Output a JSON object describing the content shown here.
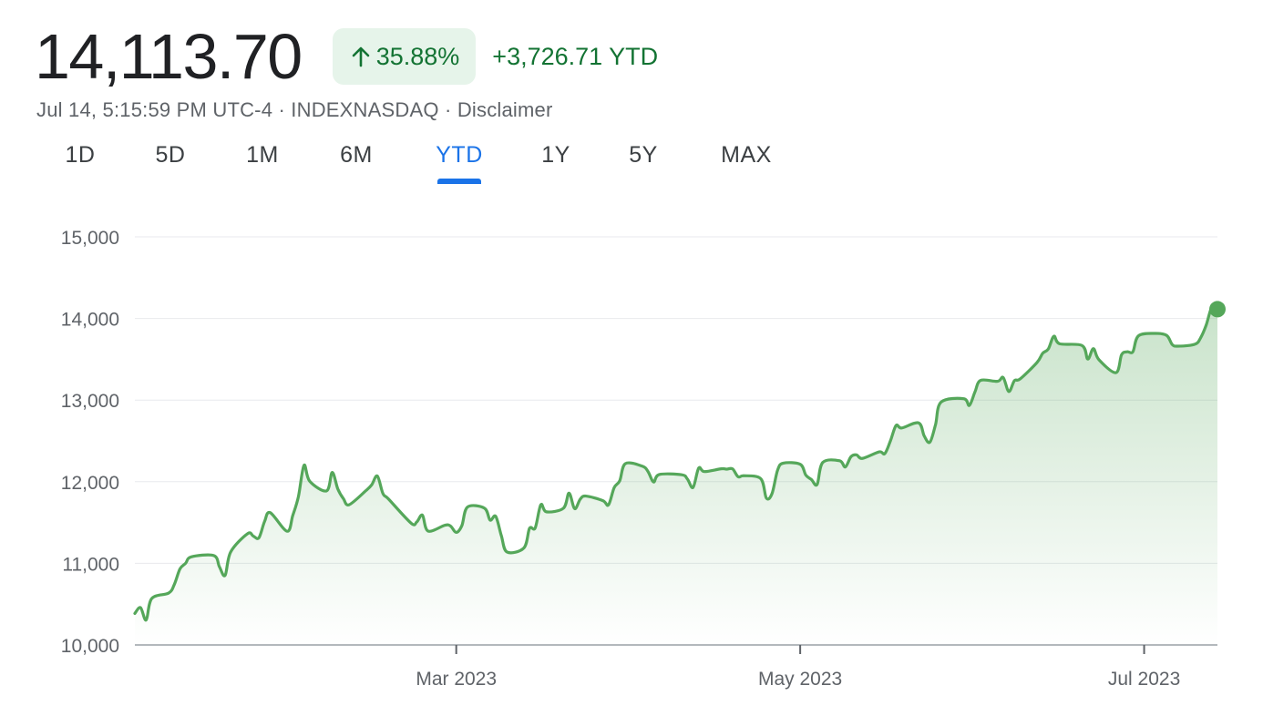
{
  "quote": {
    "price": "14,113.70",
    "change_percent": "35.88%",
    "change_abs": "+3,726.71 YTD",
    "timestamp": "Jul 14, 5:15:59 PM UTC-4",
    "exchange": "INDEXNASDAQ",
    "separator": " · ",
    "disclaimer": "Disclaimer",
    "arrow_icon": "arrow-up-icon",
    "accent_color": "#137333",
    "badge_color": "#e6f4ea"
  },
  "tabs": [
    {
      "label": "1D",
      "active": false
    },
    {
      "label": "5D",
      "active": false
    },
    {
      "label": "1M",
      "active": false
    },
    {
      "label": "6M",
      "active": false
    },
    {
      "label": "YTD",
      "active": true
    },
    {
      "label": "1Y",
      "active": false
    },
    {
      "label": "5Y",
      "active": false
    },
    {
      "label": "MAX",
      "active": false
    }
  ],
  "chart_data": {
    "type": "area",
    "title": "",
    "xlabel": "",
    "ylabel": "",
    "ylim": [
      10000,
      15000
    ],
    "yticks": [
      10000,
      11000,
      12000,
      13000,
      14000,
      15000
    ],
    "ytick_labels": [
      "10,000",
      "11,000",
      "12,000",
      "13,000",
      "14,000",
      "15,000"
    ],
    "xlim": [
      "2023-01-03",
      "2023-07-14"
    ],
    "xticks": [
      {
        "date": "2023-03-01",
        "label": "Mar 2023"
      },
      {
        "date": "2023-05-01",
        "label": "May 2023"
      },
      {
        "date": "2023-07-01",
        "label": "Jul 2023"
      }
    ],
    "grid": true,
    "line_color": "#55a75a",
    "series": [
      {
        "x": [
          "2023-01-03",
          "2023-01-04",
          "2023-01-05",
          "2023-01-06",
          "2023-01-09",
          "2023-01-10",
          "2023-01-11",
          "2023-01-12",
          "2023-01-13",
          "2023-01-17",
          "2023-01-18",
          "2023-01-19",
          "2023-01-20",
          "2023-01-23",
          "2023-01-24",
          "2023-01-25",
          "2023-01-26",
          "2023-01-27",
          "2023-01-30",
          "2023-01-31",
          "2023-02-01",
          "2023-02-02",
          "2023-02-03",
          "2023-02-06",
          "2023-02-07",
          "2023-02-08",
          "2023-02-09",
          "2023-02-10",
          "2023-02-13",
          "2023-02-14",
          "2023-02-15",
          "2023-02-16",
          "2023-02-17",
          "2023-02-21",
          "2023-02-22",
          "2023-02-23",
          "2023-02-24",
          "2023-02-27",
          "2023-02-28",
          "2023-03-01",
          "2023-03-02",
          "2023-03-03",
          "2023-03-06",
          "2023-03-07",
          "2023-03-08",
          "2023-03-09",
          "2023-03-10",
          "2023-03-13",
          "2023-03-14",
          "2023-03-15",
          "2023-03-16",
          "2023-03-17",
          "2023-03-20",
          "2023-03-21",
          "2023-03-22",
          "2023-03-23",
          "2023-03-24",
          "2023-03-27",
          "2023-03-28",
          "2023-03-29",
          "2023-03-30",
          "2023-03-31",
          "2023-04-03",
          "2023-04-04",
          "2023-04-05",
          "2023-04-06",
          "2023-04-10",
          "2023-04-11",
          "2023-04-12",
          "2023-04-13",
          "2023-04-14",
          "2023-04-17",
          "2023-04-18",
          "2023-04-19",
          "2023-04-20",
          "2023-04-21",
          "2023-04-24",
          "2023-04-25",
          "2023-04-26",
          "2023-04-27",
          "2023-04-28",
          "2023-05-01",
          "2023-05-02",
          "2023-05-03",
          "2023-05-04",
          "2023-05-05",
          "2023-05-08",
          "2023-05-09",
          "2023-05-10",
          "2023-05-11",
          "2023-05-12",
          "2023-05-15",
          "2023-05-16",
          "2023-05-17",
          "2023-05-18",
          "2023-05-19",
          "2023-05-22",
          "2023-05-23",
          "2023-05-24",
          "2023-05-25",
          "2023-05-26",
          "2023-05-30",
          "2023-05-31",
          "2023-06-01",
          "2023-06-02",
          "2023-06-05",
          "2023-06-06",
          "2023-06-07",
          "2023-06-08",
          "2023-06-09",
          "2023-06-12",
          "2023-06-13",
          "2023-06-14",
          "2023-06-15",
          "2023-06-16",
          "2023-06-20",
          "2023-06-21",
          "2023-06-22",
          "2023-06-23",
          "2023-06-26",
          "2023-06-27",
          "2023-06-28",
          "2023-06-29",
          "2023-06-30",
          "2023-07-03",
          "2023-07-05",
          "2023-07-06",
          "2023-07-07",
          "2023-07-10",
          "2023-07-11",
          "2023-07-12",
          "2023-07-13",
          "2023-07-14"
        ],
        "y": [
          10386,
          10458,
          10305,
          10569,
          10636,
          10742,
          10932,
          11001,
          11079,
          11095,
          10957,
          10852,
          11140,
          11364,
          11334,
          11313,
          11512,
          11621,
          11393,
          11585,
          11816,
          12201,
          12007,
          11888,
          12114,
          11910,
          11790,
          11718,
          11892,
          11961,
          12070,
          11855,
          11787,
          11492,
          11507,
          11590,
          11395,
          11467,
          11456,
          11379,
          11463,
          11690,
          11676,
          11530,
          11576,
          11338,
          11139,
          11189,
          11429,
          11434,
          11718,
          11631,
          11675,
          11860,
          11670,
          11787,
          11824,
          11768,
          11716,
          11926,
          12013,
          12222,
          12190,
          12126,
          11997,
          12088,
          12085,
          12032,
          11930,
          12167,
          12124,
          12158,
          12154,
          12157,
          12060,
          12073,
          12037,
          11799,
          11854,
          12143,
          12227,
          12213,
          12081,
          12026,
          11966,
          12236,
          12256,
          12180,
          12306,
          12329,
          12285,
          12366,
          12344,
          12500,
          12689,
          12658,
          12721,
          12560,
          12484,
          12699,
          12976,
          13017,
          12935,
          13101,
          13241,
          13230,
          13277,
          13105,
          13239,
          13259,
          13461,
          13573,
          13626,
          13783,
          13690,
          13668,
          13503,
          13630,
          13493,
          13336,
          13556,
          13592,
          13592,
          13788,
          13817,
          13792,
          13679,
          13661,
          13685,
          13761,
          13918,
          14138,
          14114
        ]
      }
    ]
  }
}
